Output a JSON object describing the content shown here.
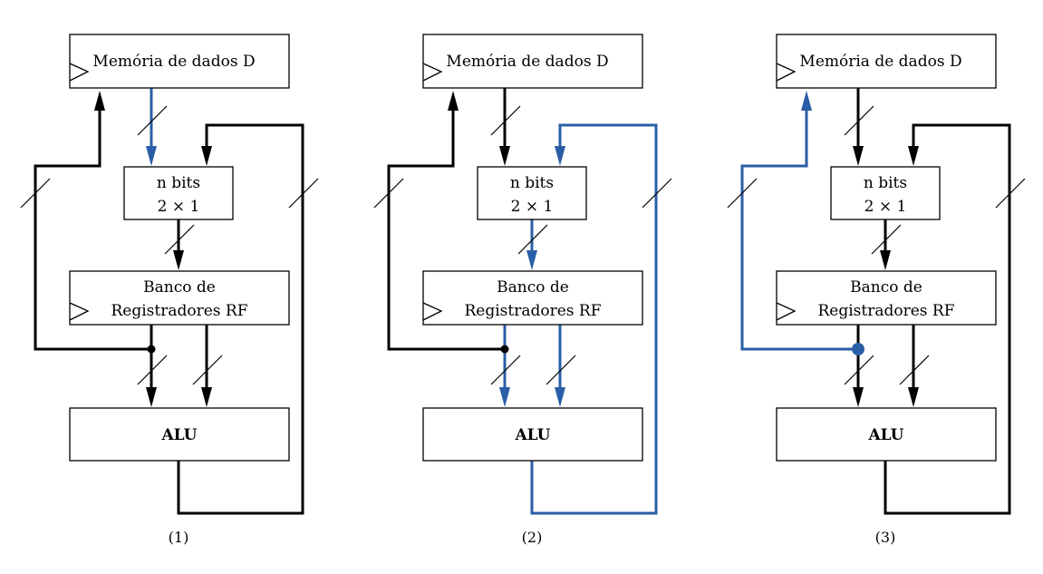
{
  "colors": {
    "default": "#000000",
    "highlight": "#2a5ea6"
  },
  "labels": {
    "memory": "Memória de dados D",
    "mux_line1": "n bits",
    "mux_line2": "2 × 1",
    "rf_line1": "Banco de",
    "rf_line2": "Registradores RF",
    "alu": "ALU"
  },
  "panels": [
    {
      "caption": "(1)",
      "highlight": {
        "mem_to_mux": true,
        "alu_loop": false,
        "mux_to_rf": false,
        "rf_to_alu": false,
        "rf_to_mem": false
      }
    },
    {
      "caption": "(2)",
      "highlight": {
        "mem_to_mux": false,
        "alu_loop": true,
        "mux_to_rf": true,
        "rf_to_alu": true,
        "rf_to_mem": false
      }
    },
    {
      "caption": "(3)",
      "highlight": {
        "mem_to_mux": false,
        "alu_loop": false,
        "mux_to_rf": false,
        "rf_to_alu": false,
        "rf_to_mem": true
      }
    }
  ]
}
